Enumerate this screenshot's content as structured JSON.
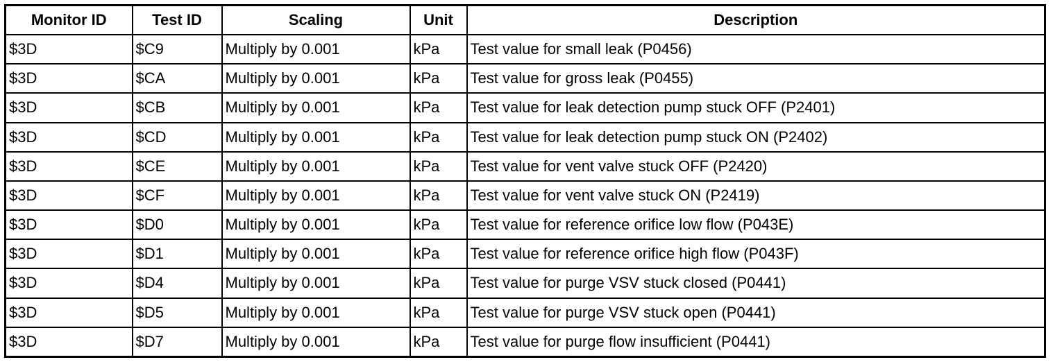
{
  "table": {
    "header": [
      "Monitor ID",
      "Test ID",
      "Scaling",
      "Unit",
      "Description"
    ],
    "rows": [
      [
        "$3D",
        "$C9",
        "Multiply by 0.001",
        "kPa",
        "Test value for small leak (P0456)"
      ],
      [
        "$3D",
        "$CA",
        "Multiply by 0.001",
        "kPa",
        "Test value for gross leak (P0455)"
      ],
      [
        "$3D",
        "$CB",
        "Multiply by 0.001",
        "kPa",
        "Test value for leak detection pump stuck OFF (P2401)"
      ],
      [
        "$3D",
        "$CD",
        "Multiply by 0.001",
        "kPa",
        "Test value for leak detection pump stuck ON (P2402)"
      ],
      [
        "$3D",
        "$CE",
        "Multiply by 0.001",
        "kPa",
        "Test value for vent valve stuck OFF (P2420)"
      ],
      [
        "$3D",
        "$CF",
        "Multiply by 0.001",
        "kPa",
        "Test value for vent valve stuck ON (P2419)"
      ],
      [
        "$3D",
        "$D0",
        "Multiply by 0.001",
        "kPa",
        "Test value for reference orifice low flow (P043E)"
      ],
      [
        "$3D",
        "$D1",
        "Multiply by 0.001",
        "kPa",
        "Test value for reference orifice high flow (P043F)"
      ],
      [
        "$3D",
        "$D4",
        "Multiply by 0.001",
        "kPa",
        "Test value for purge VSV stuck closed (P0441)"
      ],
      [
        "$3D",
        "$D5",
        "Multiply by 0.001",
        "kPa",
        "Test value for purge VSV stuck open (P0441)"
      ],
      [
        "$3D",
        "$D7",
        "Multiply by 0.001",
        "kPa",
        "Test value for purge flow insufficient (P0441)"
      ]
    ]
  }
}
